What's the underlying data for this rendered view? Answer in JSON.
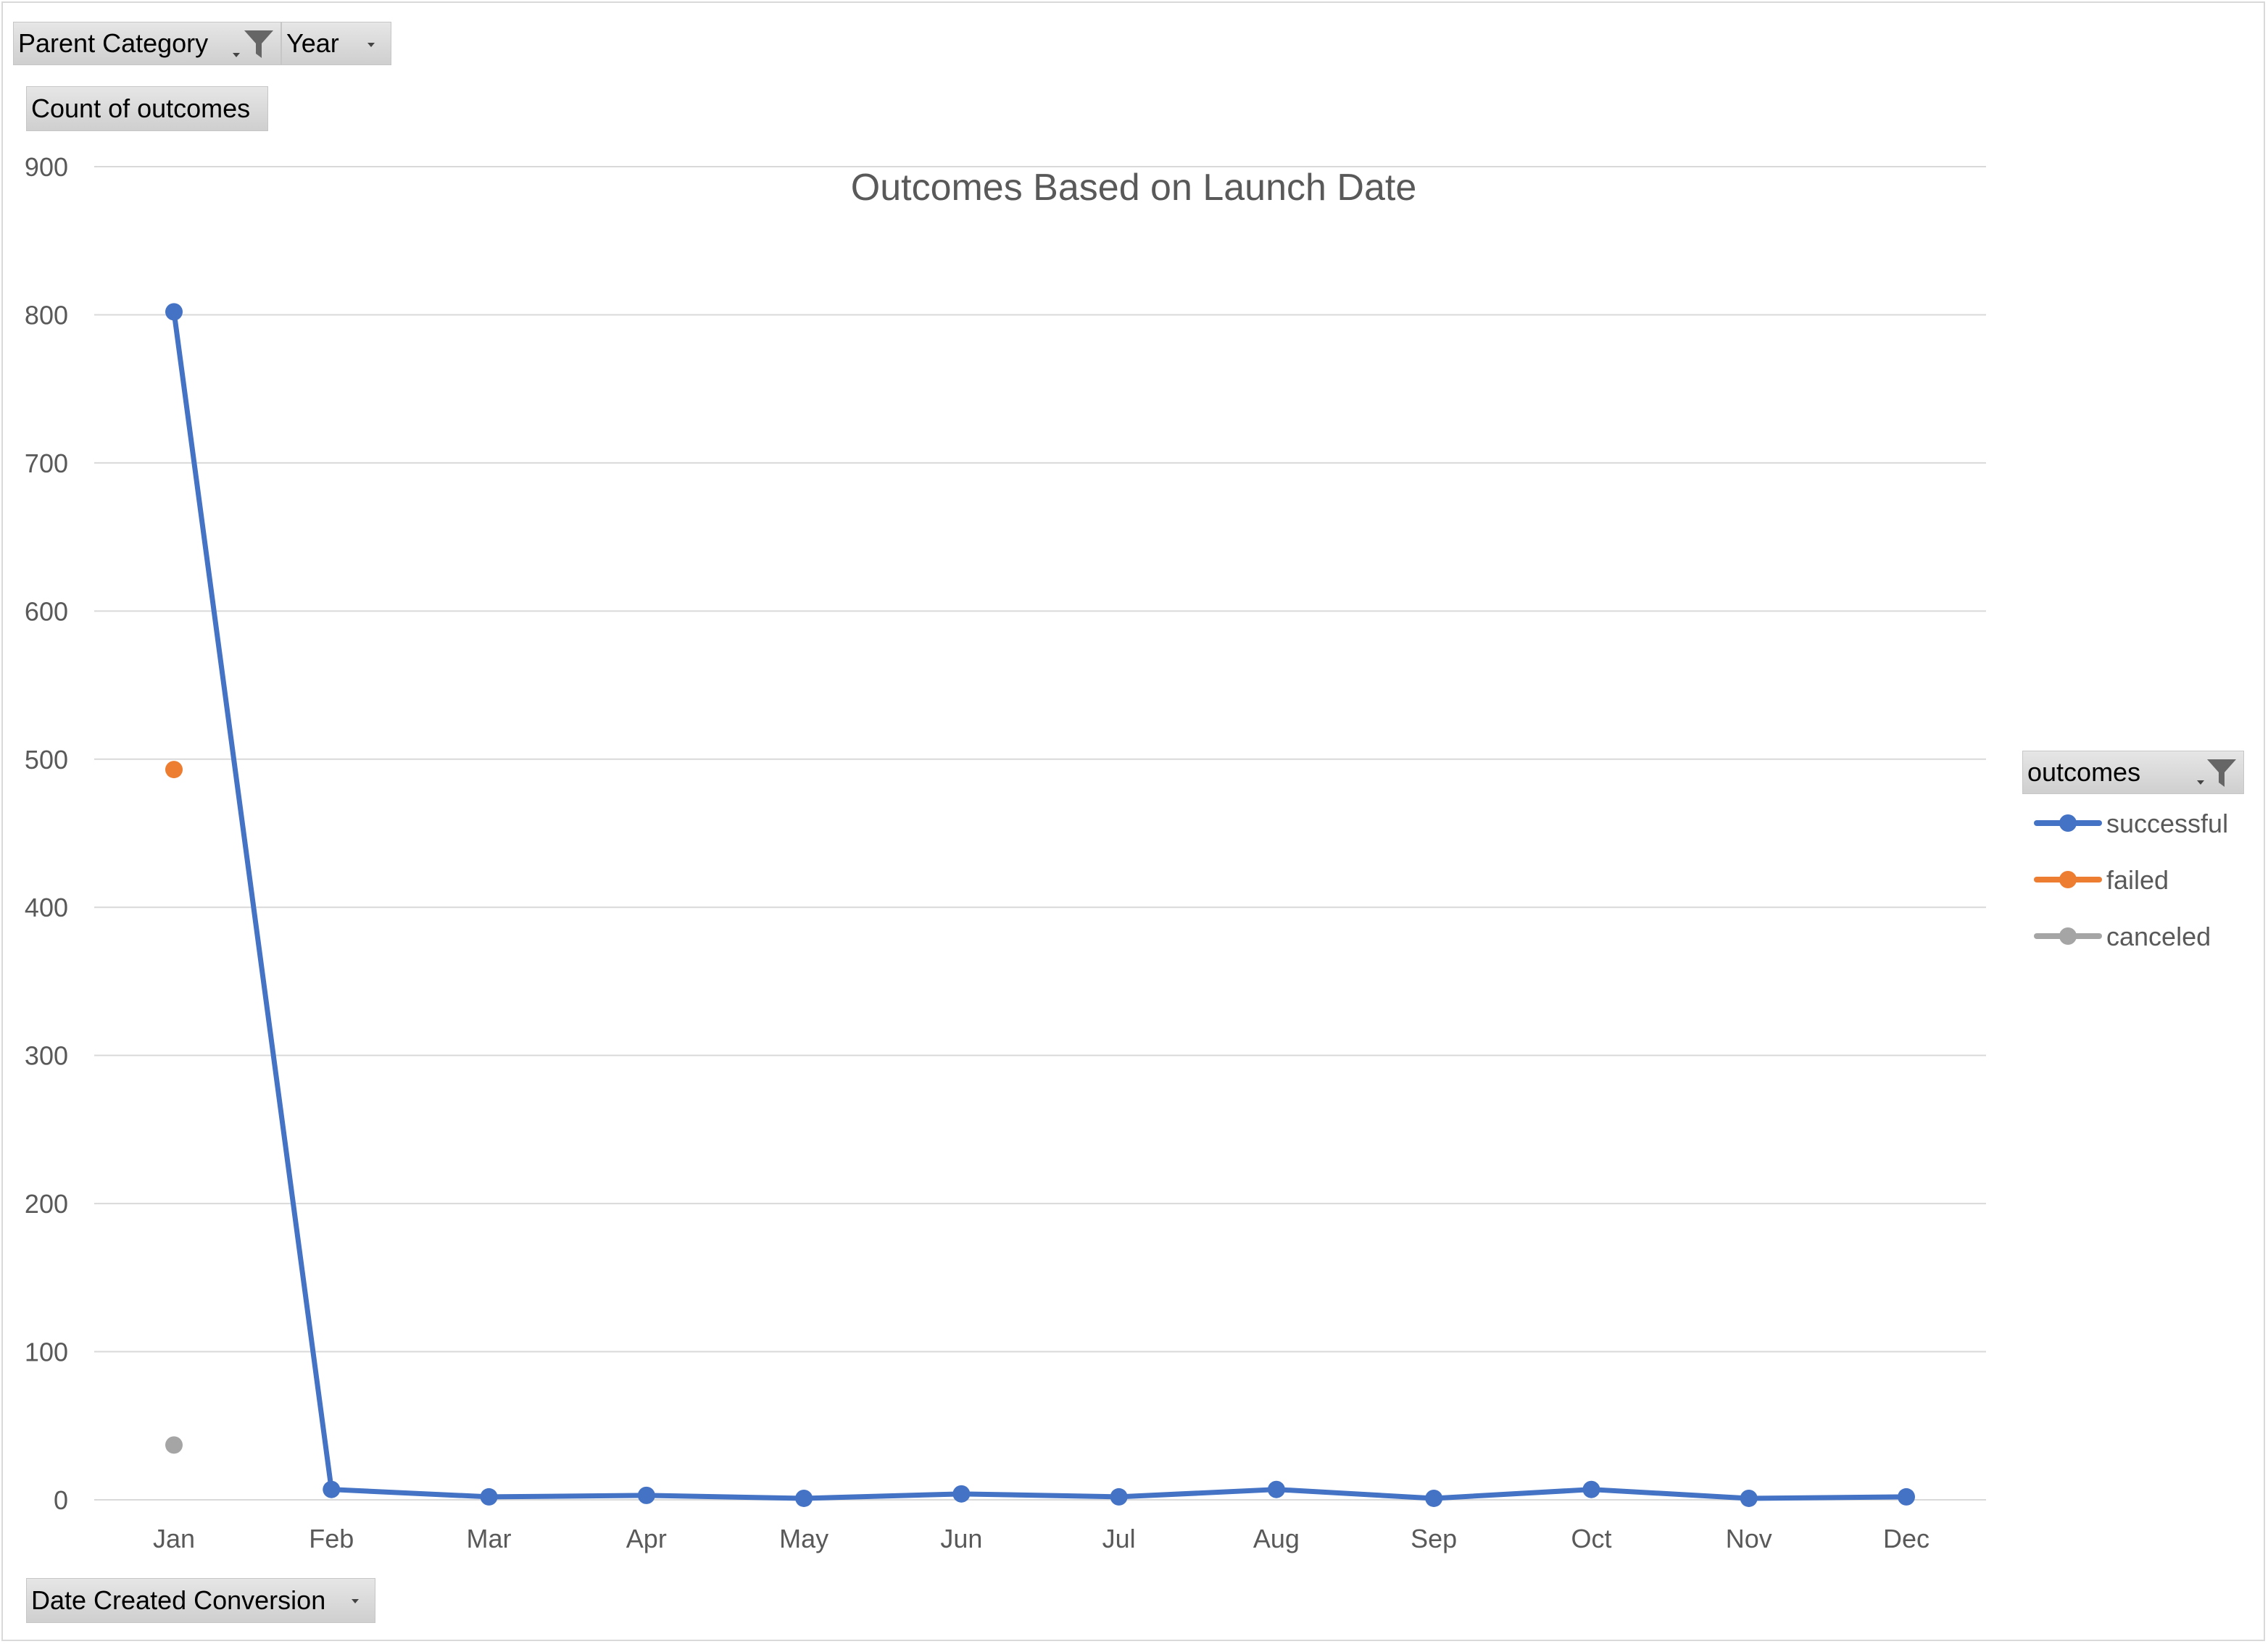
{
  "filters": {
    "parent_category": "Parent Category",
    "year": "Year",
    "values_field": "Count of outcomes",
    "axis_field": "Date Created Conversion",
    "legend_field": "outcomes"
  },
  "colors": {
    "successful": "#4472c4",
    "failed": "#ed7d31",
    "canceled": "#a5a5a5",
    "grid": "#d9d9d9",
    "axis_text": "#595959"
  },
  "icons": {
    "filter": "funnel-icon",
    "dropdown": "chevron-down-icon"
  },
  "chart_data": {
    "type": "line",
    "title": "Outcomes Based on Launch Date",
    "xlabel": "",
    "ylabel": "",
    "categories": [
      "Jan",
      "Feb",
      "Mar",
      "Apr",
      "May",
      "Jun",
      "Jul",
      "Aug",
      "Sep",
      "Oct",
      "Nov",
      "Dec"
    ],
    "yticks": [
      0,
      100,
      200,
      300,
      400,
      500,
      600,
      700,
      800,
      900
    ],
    "ylim": [
      0,
      900
    ],
    "grid": true,
    "legend": "right",
    "series": [
      {
        "name": "successful",
        "values": [
          802,
          7,
          2,
          3,
          1,
          4,
          2,
          7,
          1,
          7,
          1,
          2
        ]
      },
      {
        "name": "failed",
        "values": [
          493,
          null,
          null,
          null,
          null,
          null,
          null,
          null,
          null,
          null,
          null,
          null
        ]
      },
      {
        "name": "canceled",
        "values": [
          37,
          null,
          null,
          null,
          null,
          null,
          null,
          null,
          null,
          null,
          null,
          null
        ]
      }
    ]
  }
}
